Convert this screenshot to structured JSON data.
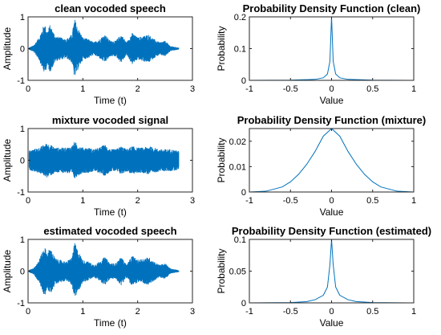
{
  "chart_data": [
    {
      "type": "line",
      "title": "clean vocoded speech",
      "xlabel": "Time (t)",
      "ylabel": "Amplitude",
      "xlim": [
        0,
        3
      ],
      "ylim": [
        -1,
        1
      ],
      "xticks": [
        0,
        1,
        2,
        3
      ],
      "yticks": [
        -1,
        0,
        1
      ],
      "xtick_labels": [
        "0",
        "1",
        "2",
        "3"
      ],
      "ytick_labels": [
        "-1",
        "0",
        "1"
      ],
      "color": "#0072BD",
      "x": [
        0.0,
        0.1,
        0.2,
        0.3,
        0.35,
        0.4,
        0.5,
        0.6,
        0.7,
        0.8,
        0.85,
        0.9,
        1.0,
        1.1,
        1.2,
        1.3,
        1.4,
        1.5,
        1.6,
        1.7,
        1.8,
        1.9,
        2.0,
        2.1,
        2.2,
        2.3,
        2.4,
        2.5,
        2.6,
        2.75
      ],
      "y": [
        0.02,
        0.1,
        0.35,
        0.8,
        0.55,
        0.75,
        0.4,
        0.35,
        0.3,
        0.45,
        0.95,
        0.7,
        0.35,
        0.3,
        0.2,
        0.3,
        0.45,
        0.25,
        0.25,
        0.45,
        0.2,
        0.5,
        0.35,
        0.4,
        0.45,
        0.3,
        0.2,
        0.25,
        0.08,
        0.03
      ]
    },
    {
      "type": "line",
      "title": "Probability Density Function (clean)",
      "xlabel": "Value",
      "ylabel": "Probability",
      "xlim": [
        -1,
        1
      ],
      "ylim": [
        0,
        0.2
      ],
      "xticks": [
        -1,
        -0.5,
        0,
        0.5,
        1
      ],
      "yticks": [
        0,
        0.1,
        0.2
      ],
      "xtick_labels": [
        "-1",
        "-0.5",
        "0",
        "0.5",
        "1"
      ],
      "ytick_labels": [
        "0",
        "0.1",
        "0.2"
      ],
      "color": "#0072BD",
      "x": [
        -1,
        -0.5,
        -0.2,
        -0.1,
        -0.05,
        -0.02,
        0,
        0.02,
        0.05,
        0.1,
        0.2,
        0.5,
        1
      ],
      "y": [
        0,
        0.0005,
        0.003,
        0.008,
        0.02,
        0.06,
        0.2,
        0.06,
        0.02,
        0.008,
        0.003,
        0.0005,
        0
      ]
    },
    {
      "type": "line",
      "title": "mixture vocoded signal",
      "xlabel": "Time (t)",
      "ylabel": "Amplitude",
      "xlim": [
        0,
        3
      ],
      "ylim": [
        -1,
        1
      ],
      "xticks": [
        0,
        1,
        2,
        3
      ],
      "yticks": [
        -1,
        0,
        1
      ],
      "xtick_labels": [
        "0",
        "1",
        "2",
        "3"
      ],
      "ytick_labels": [
        "-1",
        "0",
        "1"
      ],
      "color": "#0072BD",
      "x": [
        0.0,
        0.1,
        0.2,
        0.3,
        0.35,
        0.4,
        0.5,
        0.6,
        0.7,
        0.8,
        0.85,
        0.9,
        1.0,
        1.1,
        1.2,
        1.3,
        1.4,
        1.5,
        1.6,
        1.7,
        1.8,
        1.9,
        2.0,
        2.1,
        2.2,
        2.3,
        2.4,
        2.5,
        2.6,
        2.75
      ],
      "y": [
        0.3,
        0.35,
        0.4,
        0.5,
        0.55,
        0.5,
        0.4,
        0.4,
        0.4,
        0.45,
        0.6,
        0.5,
        0.4,
        0.4,
        0.35,
        0.4,
        0.5,
        0.35,
        0.35,
        0.45,
        0.35,
        0.45,
        0.4,
        0.4,
        0.45,
        0.4,
        0.35,
        0.35,
        0.35,
        0.3
      ]
    },
    {
      "type": "line",
      "title": "Probability Density Function (mixture)",
      "xlabel": "Value",
      "ylabel": "Probability",
      "xlim": [
        -1,
        1
      ],
      "ylim": [
        0,
        0.025
      ],
      "xticks": [
        -1,
        -0.5,
        0,
        0.5,
        1
      ],
      "yticks": [
        0,
        0.01,
        0.02
      ],
      "xtick_labels": [
        "-1",
        "-0.5",
        "0",
        "0.5",
        "1"
      ],
      "ytick_labels": [
        "0",
        "0.01",
        "0.02"
      ],
      "color": "#0072BD",
      "x": [
        -1,
        -0.8,
        -0.6,
        -0.5,
        -0.4,
        -0.3,
        -0.2,
        -0.1,
        0,
        0.1,
        0.2,
        0.3,
        0.4,
        0.5,
        0.6,
        0.8,
        1
      ],
      "y": [
        0,
        0.0003,
        0.002,
        0.004,
        0.007,
        0.011,
        0.016,
        0.022,
        0.025,
        0.022,
        0.016,
        0.011,
        0.007,
        0.004,
        0.002,
        0.0003,
        0
      ]
    },
    {
      "type": "line",
      "title": "estimated vocoded speech",
      "xlabel": "Time (t)",
      "ylabel": "Amplitude",
      "xlim": [
        0,
        3
      ],
      "ylim": [
        -1,
        1
      ],
      "xticks": [
        0,
        1,
        2,
        3
      ],
      "yticks": [
        -1,
        0,
        1
      ],
      "xtick_labels": [
        "0",
        "1",
        "2",
        "3"
      ],
      "ytick_labels": [
        "-1",
        "0",
        "1"
      ],
      "color": "#0072BD",
      "x": [
        0.0,
        0.1,
        0.2,
        0.3,
        0.35,
        0.4,
        0.5,
        0.6,
        0.7,
        0.8,
        0.85,
        0.9,
        1.0,
        1.1,
        1.2,
        1.3,
        1.4,
        1.5,
        1.6,
        1.7,
        1.8,
        1.9,
        2.0,
        2.1,
        2.2,
        2.3,
        2.4,
        2.5,
        2.6,
        2.75
      ],
      "y": [
        0.02,
        0.1,
        0.35,
        0.8,
        0.55,
        0.75,
        0.4,
        0.35,
        0.3,
        0.45,
        0.9,
        0.7,
        0.35,
        0.3,
        0.2,
        0.3,
        0.45,
        0.25,
        0.25,
        0.45,
        0.2,
        0.5,
        0.35,
        0.4,
        0.45,
        0.3,
        0.2,
        0.25,
        0.08,
        0.03
      ]
    },
    {
      "type": "line",
      "title": "Probability Density Function (estimated)",
      "xlabel": "Value",
      "ylabel": "Probability",
      "xlim": [
        -1,
        1
      ],
      "ylim": [
        0,
        0.1
      ],
      "xticks": [
        -1,
        -0.5,
        0,
        0.5,
        1
      ],
      "yticks": [
        0,
        0.05,
        0.1
      ],
      "xtick_labels": [
        "-1",
        "-0.5",
        "0",
        "0.5",
        "1"
      ],
      "ytick_labels": [
        "0",
        "0.05",
        "0.1"
      ],
      "color": "#0072BD",
      "x": [
        -1,
        -0.5,
        -0.3,
        -0.2,
        -0.1,
        -0.05,
        -0.02,
        0,
        0.02,
        0.05,
        0.1,
        0.2,
        0.3,
        0.5,
        1
      ],
      "y": [
        0,
        0.0005,
        0.002,
        0.005,
        0.012,
        0.025,
        0.06,
        0.1,
        0.06,
        0.025,
        0.012,
        0.005,
        0.002,
        0.0005,
        0
      ]
    }
  ]
}
